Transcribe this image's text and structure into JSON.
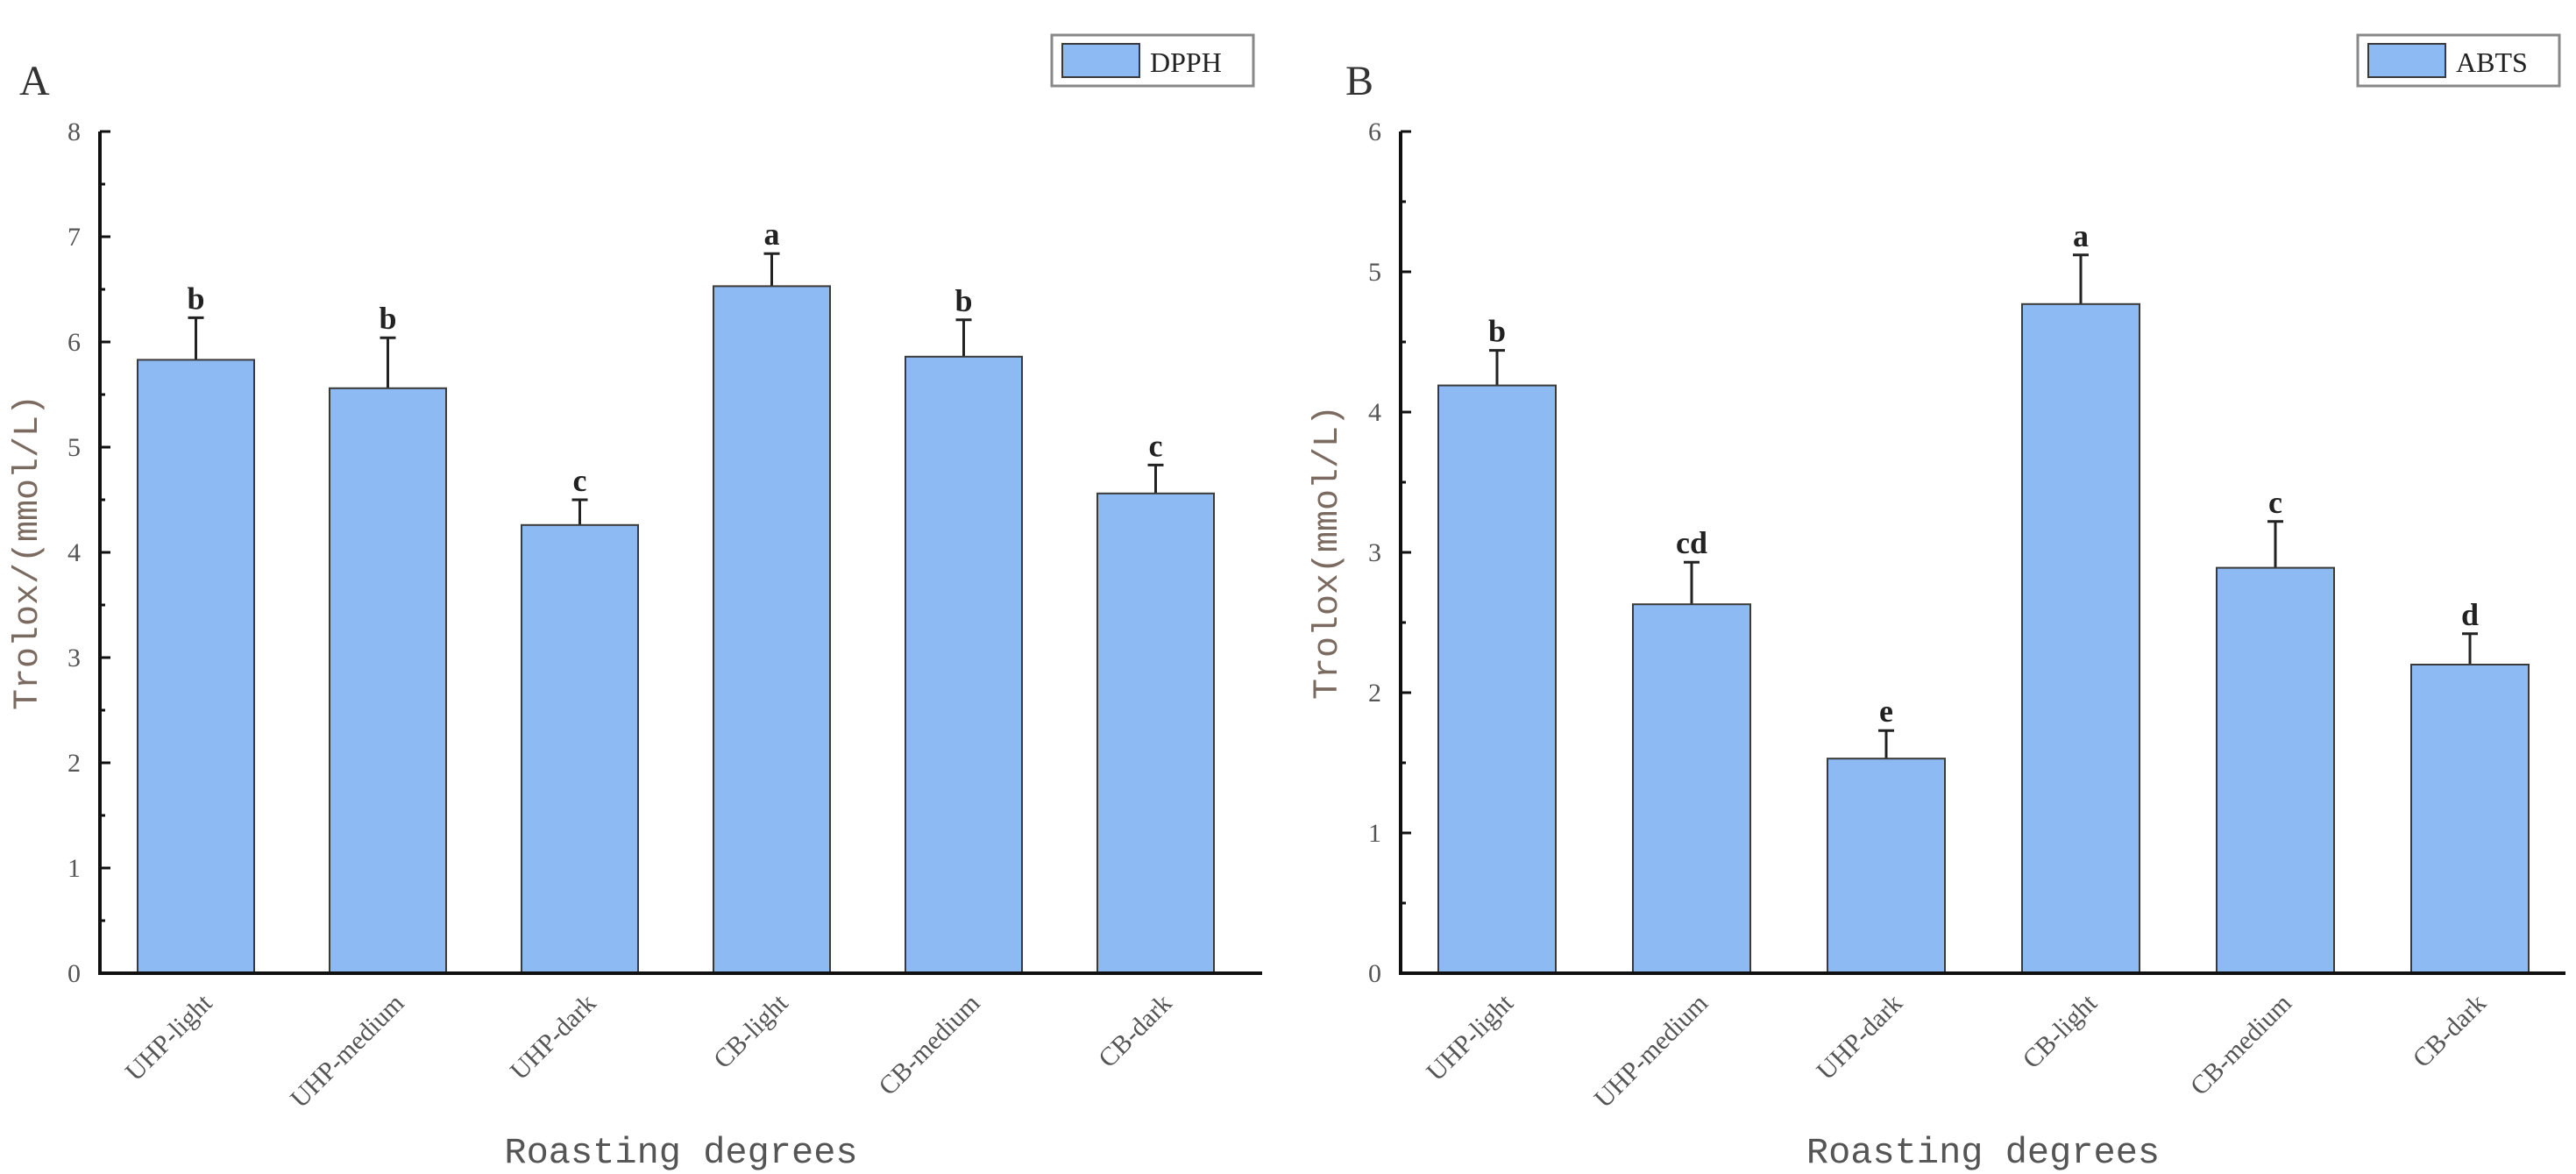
{
  "colors": {
    "bar": "#8dbaf2",
    "bar_edge": "#3a3a3a",
    "axis": "#111111"
  },
  "chart_data": [
    {
      "type": "bar",
      "panel": "A",
      "legend": "DPPH",
      "legend_position": "top-right",
      "xlabel": "Roasting degrees",
      "ylabel": "Trolox/(mmol/L)",
      "ylim": [
        0,
        8
      ],
      "yticks": [
        "0",
        "1",
        "2",
        "3",
        "4",
        "5",
        "6",
        "7",
        "8"
      ],
      "categories": [
        "UHP-light",
        "UHP-medium",
        "UHP-dark",
        "CB-light",
        "CB-medium",
        "CB-dark"
      ],
      "values": [
        5.83,
        5.56,
        4.26,
        6.53,
        5.86,
        4.56
      ],
      "errors": [
        0.4,
        0.48,
        0.24,
        0.31,
        0.35,
        0.27
      ],
      "significance": [
        "b",
        "b",
        "c",
        "a",
        "b",
        "c"
      ]
    },
    {
      "type": "bar",
      "panel": "B",
      "legend": "ABTS",
      "legend_position": "top-right",
      "xlabel": "Roasting degrees",
      "ylabel": "Trolox(mmol/L)",
      "ylim": [
        0,
        6
      ],
      "yticks": [
        "0",
        "1",
        "2",
        "3",
        "4",
        "5",
        "6"
      ],
      "categories": [
        "UHP-light",
        "UHP-medium",
        "UHP-dark",
        "CB-light",
        "CB-medium",
        "CB-dark"
      ],
      "values": [
        4.19,
        2.63,
        1.53,
        4.77,
        2.89,
        2.2
      ],
      "errors": [
        0.25,
        0.3,
        0.2,
        0.35,
        0.33,
        0.22
      ],
      "significance": [
        "b",
        "cd",
        "e",
        "a",
        "c",
        "d"
      ]
    }
  ]
}
